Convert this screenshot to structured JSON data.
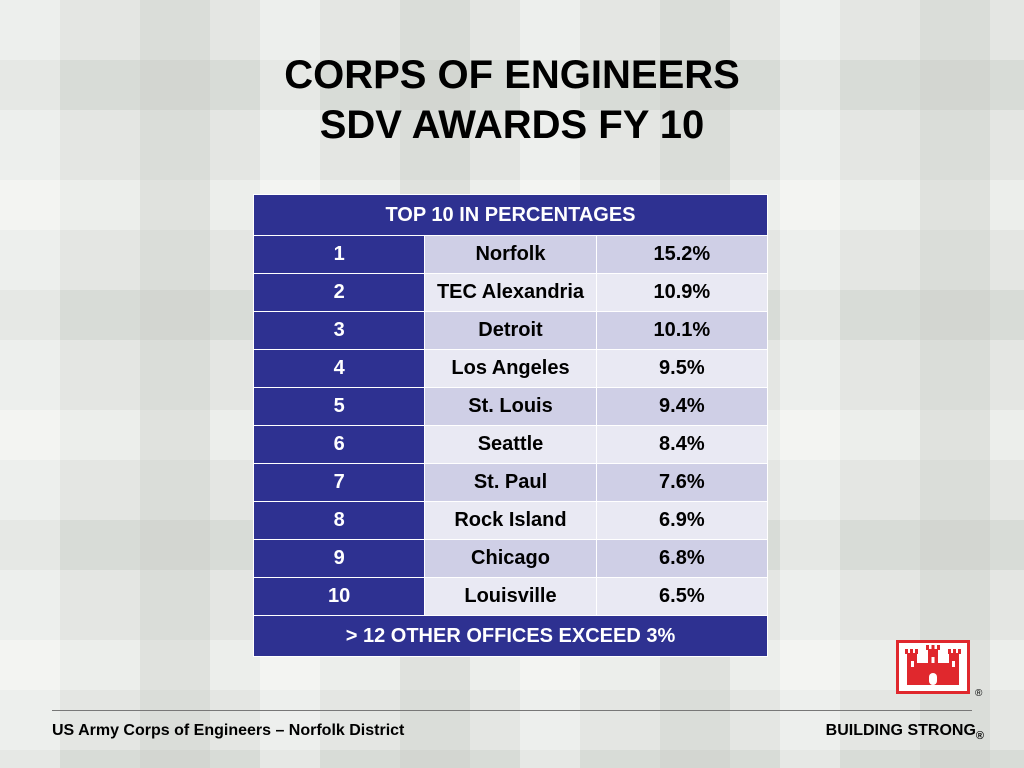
{
  "title": {
    "line1": "CORPS OF ENGINEERS",
    "line2": "SDV AWARDS FY 10"
  },
  "table": {
    "header": "TOP 10 IN PERCENTAGES",
    "rows": [
      {
        "rank": "1",
        "office": "Norfolk",
        "percent": "15.2%"
      },
      {
        "rank": "2",
        "office": "TEC Alexandria",
        "percent": "10.9%"
      },
      {
        "rank": "3",
        "office": "Detroit",
        "percent": "10.1%"
      },
      {
        "rank": "4",
        "office": "Los Angeles",
        "percent": "9.5%"
      },
      {
        "rank": "5",
        "office": "St. Louis",
        "percent": "9.4%"
      },
      {
        "rank": "6",
        "office": "Seattle",
        "percent": "8.4%"
      },
      {
        "rank": "7",
        "office": "St. Paul",
        "percent": "7.6%"
      },
      {
        "rank": "8",
        "office": "Rock Island",
        "percent": "6.9%"
      },
      {
        "rank": "9",
        "office": "Chicago",
        "percent": "6.8%"
      },
      {
        "rank": "10",
        "office": "Louisville",
        "percent": "6.5%"
      }
    ],
    "footer": "> 12 OTHER OFFICES EXCEED 3%"
  },
  "footer": {
    "left": "US Army Corps of Engineers – Norfolk District",
    "right": "BUILDING STRONG",
    "registered": "®"
  },
  "colors": {
    "accent": "#2e3191",
    "row_odd": "#cfcfe6",
    "row_even": "#e9e9f3",
    "logo_red": "#e0282d"
  },
  "logo_icon": "castle-icon"
}
